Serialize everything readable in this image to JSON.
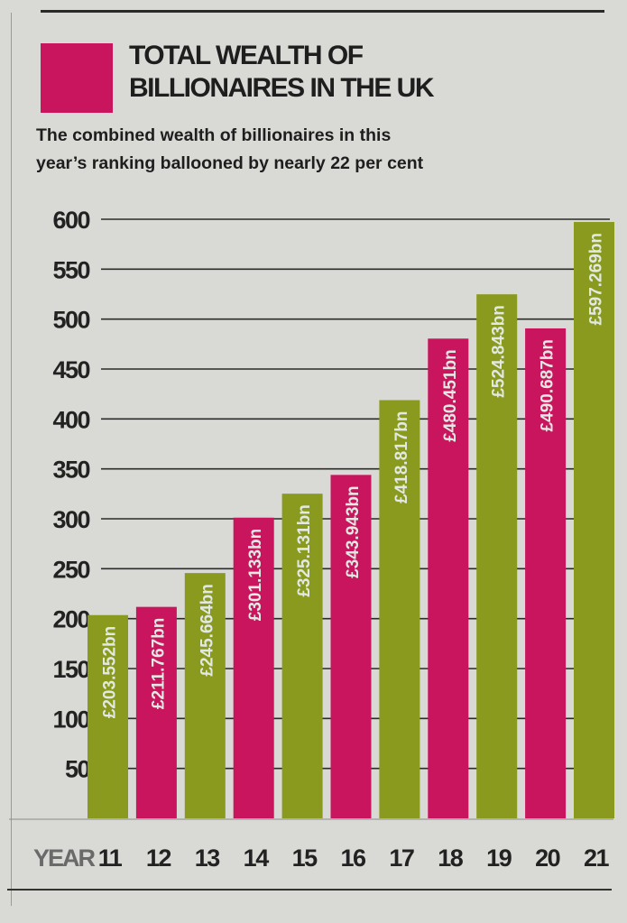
{
  "chart_data": {
    "type": "bar",
    "title": "TOTAL WEALTH OF BILLIONAIRES IN THE UK",
    "title_lines": [
      "TOTAL WEALTH OF",
      "BILLIONAIRES IN THE UK"
    ],
    "subtitle_lines": [
      "The combined wealth of billionaires in this",
      "year’s ranking ballooned by nearly 22 per cent"
    ],
    "xlabel": "YEAR",
    "ylabel": "",
    "categories": [
      "11",
      "12",
      "13",
      "14",
      "15",
      "16",
      "17",
      "18",
      "19",
      "20",
      "21"
    ],
    "values": [
      203.552,
      211.767,
      245.664,
      301.133,
      325.131,
      343.943,
      418.817,
      480.451,
      524.843,
      490.687,
      597.269
    ],
    "value_labels": [
      "£203.552bn",
      "£211.767bn",
      "£245.664bn",
      "£301.133bn",
      "£325.131bn",
      "£343.943bn",
      "£418.817bn",
      "£480.451bn",
      "£524.843bn",
      "£490.687bn",
      "£597.269bn"
    ],
    "bar_colors": [
      "#8a9a1e",
      "#c8155e",
      "#8a9a1e",
      "#c8155e",
      "#8a9a1e",
      "#c8155e",
      "#8a9a1e",
      "#c8155e",
      "#8a9a1e",
      "#c8155e",
      "#8a9a1e"
    ],
    "yticks": [
      50,
      100,
      150,
      200,
      250,
      300,
      350,
      400,
      450,
      500,
      550,
      600
    ],
    "ylim": [
      0,
      600
    ],
    "grid": true,
    "units": "£bn"
  },
  "colors": {
    "pink": "#c8155e",
    "green": "#8a9a1e",
    "label_text": "#e2e8e2"
  }
}
